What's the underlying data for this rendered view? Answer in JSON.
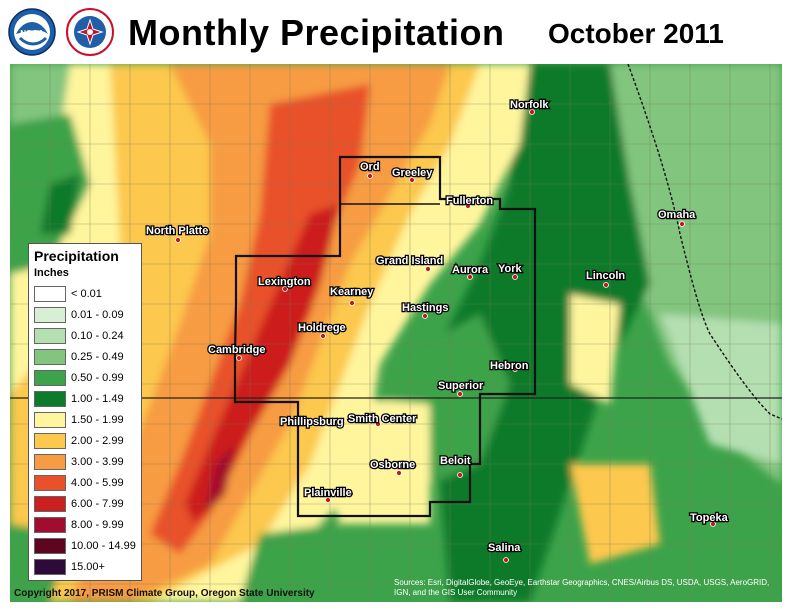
{
  "header": {
    "title": "Monthly Precipitation",
    "subtitle": "October 2011"
  },
  "logos": [
    {
      "icon": "noaa-logo",
      "text": "NOAA"
    },
    {
      "icon": "nws-logo",
      "text": "NATIONAL WEATHER SERVICE"
    }
  ],
  "legend": {
    "title": "Precipitation",
    "units": "Inches",
    "items": [
      {
        "label": "< 0.01",
        "color": "#ffffff"
      },
      {
        "label": "0.01 - 0.09",
        "color": "#d8efd6"
      },
      {
        "label": "0.10 - 0.24",
        "color": "#b4dfb1"
      },
      {
        "label": "0.25 - 0.49",
        "color": "#82c57f"
      },
      {
        "label": "0.50 - 0.99",
        "color": "#3da34a"
      },
      {
        "label": "1.00 - 1.49",
        "color": "#0d7a2c"
      },
      {
        "label": "1.50 - 1.99",
        "color": "#fff59d"
      },
      {
        "label": "2.00 - 2.99",
        "color": "#fcc84d"
      },
      {
        "label": "3.00 - 3.99",
        "color": "#f79c42"
      },
      {
        "label": "4.00 - 5.99",
        "color": "#e8512a"
      },
      {
        "label": "6.00 - 7.99",
        "color": "#cc1f1f"
      },
      {
        "label": "8.00 - 9.99",
        "color": "#a10d2e"
      },
      {
        "label": "10.00 - 14.99",
        "color": "#5e0620"
      },
      {
        "label": "15.00+",
        "color": "#2d0a3a"
      }
    ]
  },
  "cities": [
    {
      "name": "Norfolk"
    },
    {
      "name": "Ord"
    },
    {
      "name": "Greeley"
    },
    {
      "name": "Fullerton"
    },
    {
      "name": "Omaha"
    },
    {
      "name": "North Platte"
    },
    {
      "name": "Grand Island"
    },
    {
      "name": "Aurora"
    },
    {
      "name": "York"
    },
    {
      "name": "Lincoln"
    },
    {
      "name": "Lexington"
    },
    {
      "name": "Kearney"
    },
    {
      "name": "Hastings"
    },
    {
      "name": "Holdrege"
    },
    {
      "name": "Cambridge"
    },
    {
      "name": "Hebron"
    },
    {
      "name": "Superior"
    },
    {
      "name": "Phillipsburg"
    },
    {
      "name": "Smith Center"
    },
    {
      "name": "Beloit"
    },
    {
      "name": "Osborne"
    },
    {
      "name": "Plainville"
    },
    {
      "name": "Topeka"
    },
    {
      "name": "Salina"
    }
  ],
  "footer": {
    "copyright": "Copyright 2017, PRISM Climate Group, Oregon State University",
    "sources": "Sources: Esri, DigitalGlobe, GeoEye, Earthstar Geographics, CNES/Airbus DS, USDA, USGS, AeroGRID, IGN, and the GIS User Community"
  }
}
